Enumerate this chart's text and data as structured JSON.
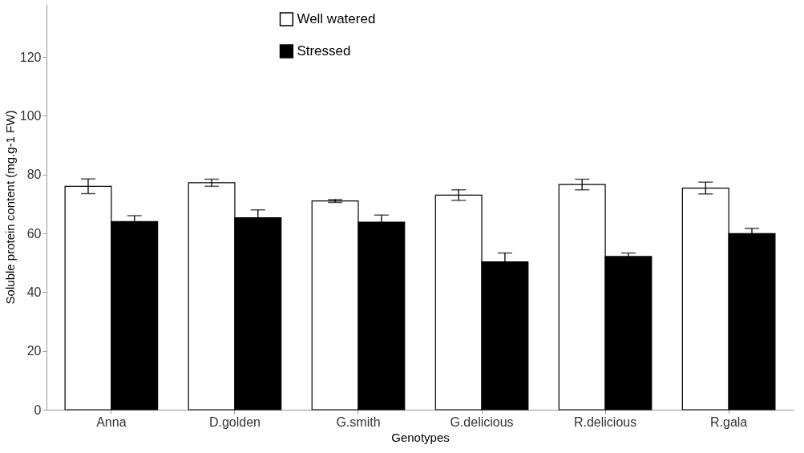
{
  "chart_data": {
    "type": "bar",
    "categories": [
      "Anna",
      "D.golden",
      "G.smith",
      "G.delicious",
      "R.delicious",
      "R.gala"
    ],
    "series": [
      {
        "name": "Well watered",
        "color": "#ffffff",
        "values": [
          76,
          77.2,
          71,
          73,
          76.6,
          75.4
        ],
        "errors": [
          2.5,
          1.2,
          0.5,
          1.8,
          1.8,
          2
        ]
      },
      {
        "name": "Stressed",
        "color": "#000000",
        "values": [
          64,
          65.3,
          63.8,
          50.3,
          52.1,
          59.9
        ],
        "errors": [
          2,
          2.7,
          2.4,
          3,
          1.2,
          1.8
        ]
      }
    ],
    "xlabel": "Genotypes",
    "ylabel": "Soluble protein content (mg.g-1 FW)",
    "ylim": [
      0,
      138
    ],
    "yticks": [
      0,
      20,
      40,
      60,
      80,
      100,
      120
    ],
    "grid": false,
    "legend": "top"
  }
}
